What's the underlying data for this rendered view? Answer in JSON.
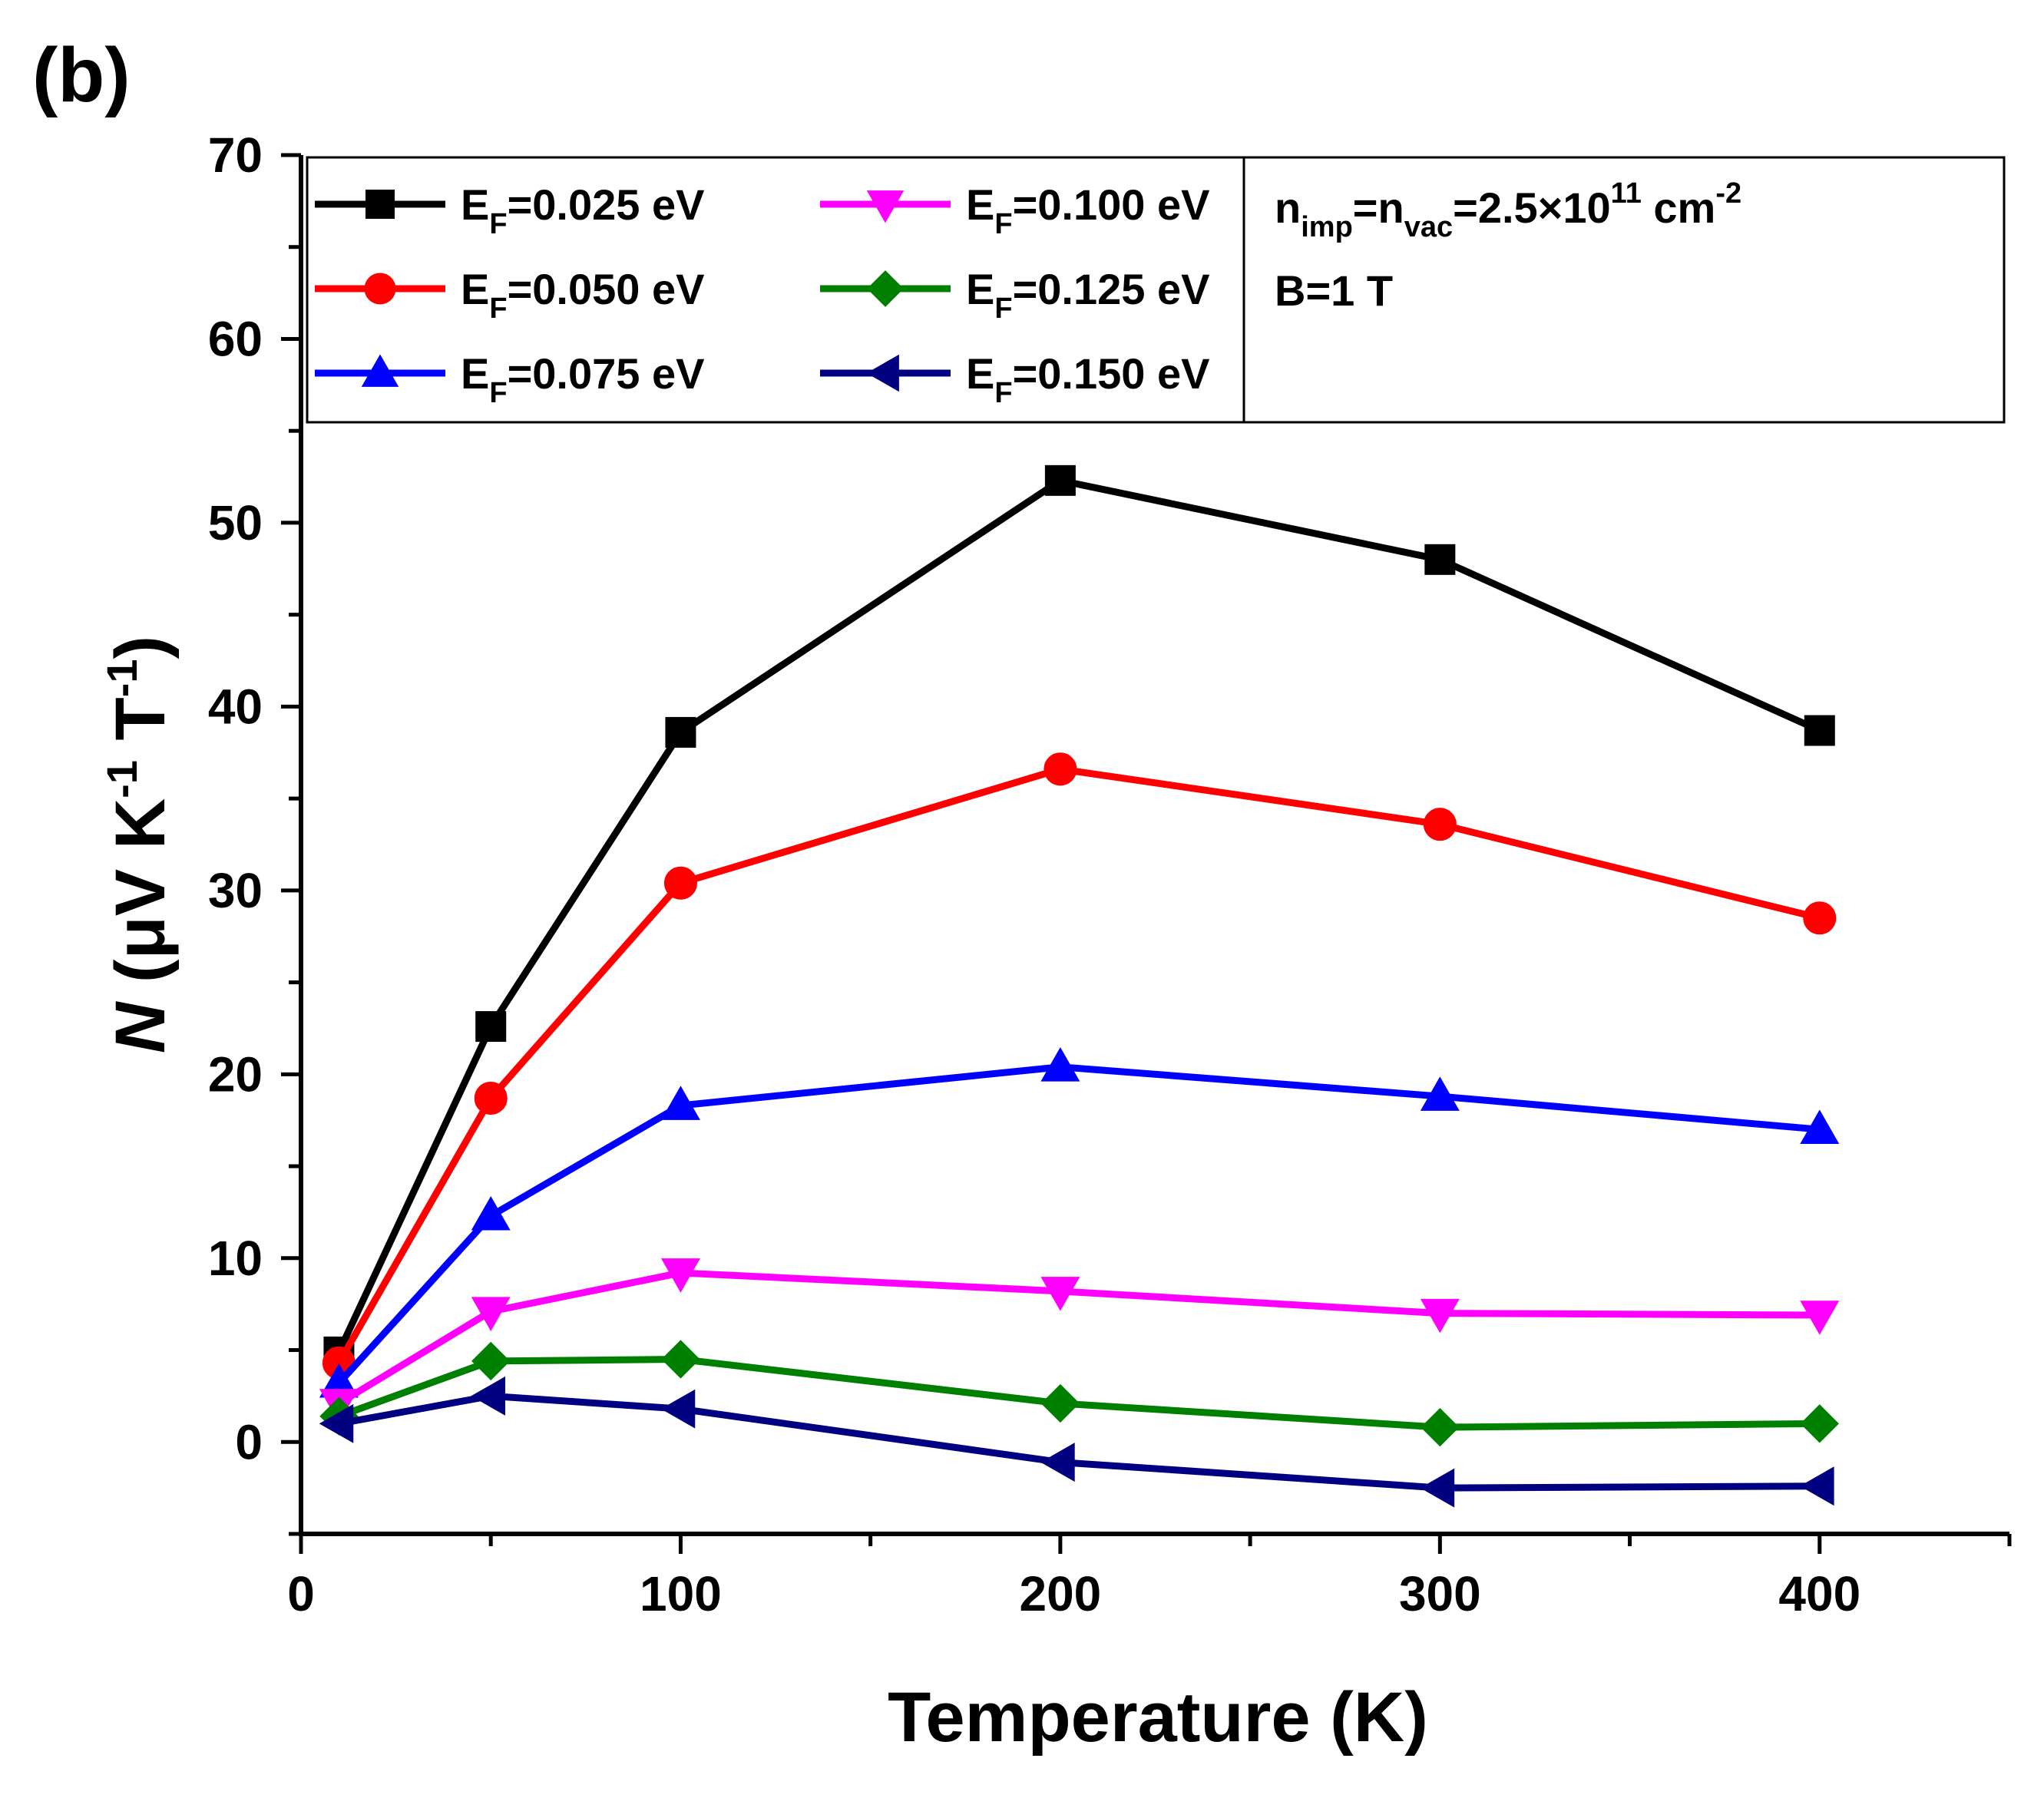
{
  "chart_data": {
    "type": "line",
    "panel_label": "(b)",
    "xlabel": "Temperature (K)",
    "ylabel": {
      "symbol": "N",
      "units_prefix": " (μV K",
      "k_exp": "-1",
      "mid": " T",
      "t_exp": "-1",
      "units_suffix": ")"
    },
    "xlim": [
      0,
      450
    ],
    "ylim": [
      -5,
      70
    ],
    "xticks": [
      0,
      100,
      200,
      300,
      400
    ],
    "yticks": [
      0,
      10,
      20,
      30,
      40,
      50,
      60,
      70
    ],
    "x": [
      10,
      50,
      100,
      200,
      300,
      400
    ],
    "series": [
      {
        "name": "EF=0.025 eV",
        "label_main": "E",
        "label_sub": "F",
        "label_rest": "=0.025 eV",
        "color": "#000000",
        "marker": "square",
        "values": [
          4.9,
          22.6,
          38.6,
          52.3,
          48.0,
          38.7
        ]
      },
      {
        "name": "EF=0.050 eV",
        "label_main": "E",
        "label_sub": "F",
        "label_rest": "=0.050 eV",
        "color": "#ff0000",
        "marker": "circle",
        "values": [
          4.3,
          18.7,
          30.4,
          36.6,
          33.6,
          28.5
        ]
      },
      {
        "name": "EF=0.075 eV",
        "label_main": "E",
        "label_sub": "F",
        "label_rest": "=0.075 eV",
        "color": "#0000ff",
        "marker": "triangle-up",
        "values": [
          3.2,
          12.3,
          18.3,
          20.4,
          18.8,
          17.0
        ]
      },
      {
        "name": "EF=0.100 eV",
        "label_main": "E",
        "label_sub": "F",
        "label_rest": "=0.100 eV",
        "color": "#ff00ff",
        "marker": "triangle-down",
        "values": [
          2.1,
          7.1,
          9.2,
          8.2,
          7.0,
          6.9
        ]
      },
      {
        "name": "EF=0.125 eV",
        "label_main": "E",
        "label_sub": "F",
        "label_rest": "=0.125 eV",
        "color": "#008000",
        "marker": "diamond",
        "values": [
          1.4,
          4.4,
          4.5,
          2.1,
          0.8,
          1.0
        ]
      },
      {
        "name": "EF=0.150 eV",
        "label_main": "E",
        "label_sub": "F",
        "label_rest": "=0.150 eV",
        "color": "#000080",
        "marker": "triangle-left",
        "values": [
          1.0,
          2.5,
          1.8,
          -1.1,
          -2.5,
          -2.4
        ]
      }
    ],
    "annotation": {
      "n_imp_main": "n",
      "n_imp_sub": "imp",
      "n_vac_main": "=n",
      "n_vac_sub": "vac",
      "value_prefix": "=2.5×10",
      "value_exp": "11",
      "unit": " cm",
      "unit_exp": "-2",
      "field": "B=1 T"
    },
    "legend_placement": "top, inside plot (two columns + annotation box)"
  }
}
